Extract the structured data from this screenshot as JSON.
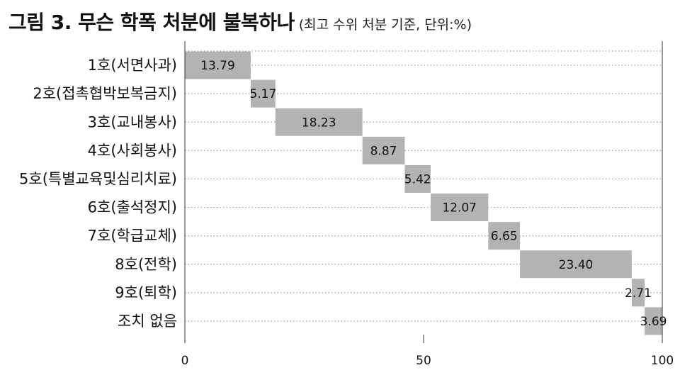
{
  "header": {
    "title": "그림 3. 무슨 학폭 처분에 불복하나",
    "subtitle": "(최고 수위 처분 기준, 단위:%)"
  },
  "chart_data": {
    "type": "bar",
    "subtype": "waterfall-stacked",
    "orientation": "horizontal",
    "categories": [
      "1호(서면사과)",
      "2호(접촉협박보복금지)",
      "3호(교내봉사)",
      "4호(사회봉사)",
      "5호(특별교육및심리치료)",
      "6호(출석정지)",
      "7호(학급교체)",
      "8호(전학)",
      "9호(퇴학)",
      "조치 없음"
    ],
    "values": [
      13.79,
      5.17,
      18.23,
      8.87,
      5.42,
      12.07,
      6.65,
      23.4,
      2.71,
      3.69
    ],
    "value_labels": [
      "13.79",
      "5.17",
      "18.23",
      "8.87",
      "5.42",
      "12.07",
      "6.65",
      "23.40",
      "2.71",
      "3.69"
    ],
    "title": "그림 3. 무슨 학폭 처분에 불복하나",
    "subtitle": "(최고 수위 처분 기준, 단위:%)",
    "xlim": [
      0,
      100
    ],
    "xticks": [
      "0",
      "50",
      "100"
    ],
    "xtick_values": [
      0,
      50,
      100
    ],
    "grid": "horizontal dotted",
    "legend": "none",
    "bar_color": "#b3b3b3",
    "grid_color": "#9a9a9a"
  }
}
